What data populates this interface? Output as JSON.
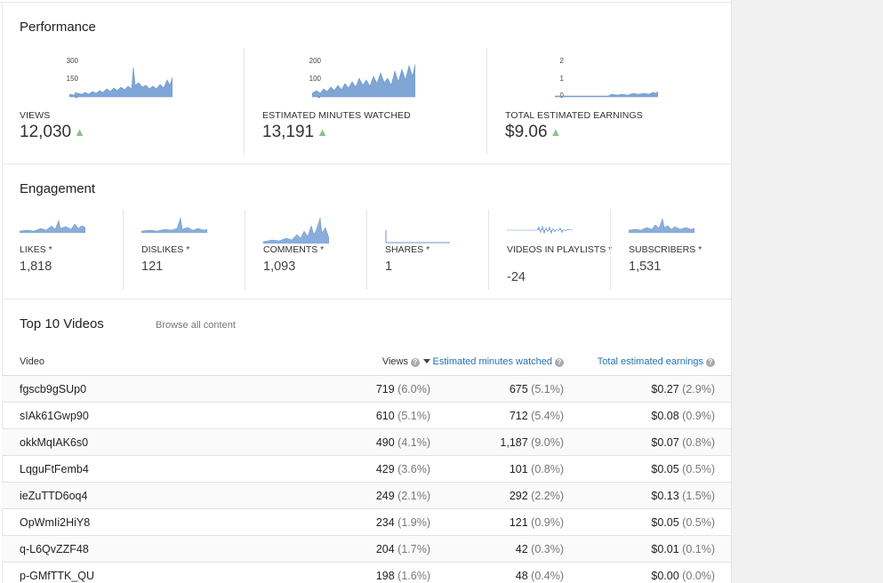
{
  "performance": {
    "title": "Performance",
    "views": {
      "label": "VIEWS",
      "value": "12,030",
      "ticks": [
        "300",
        "150",
        "0"
      ],
      "color": "#7fa6d5"
    },
    "minutes": {
      "label": "ESTIMATED MINUTES WATCHED",
      "value": "13,191",
      "ticks": [
        "200",
        "100",
        "0"
      ],
      "color": "#7fa6d5"
    },
    "earnings": {
      "label": "TOTAL ESTIMATED EARNINGS",
      "value": "$9.06",
      "ticks": [
        "2",
        "1",
        "0"
      ],
      "color": "#7fa6d5"
    },
    "trend_symbol": "▲",
    "trend_color": "#8fc08a"
  },
  "engagement": {
    "title": "Engagement",
    "items": [
      {
        "label": "LIKES *",
        "value": "1,818"
      },
      {
        "label": "DISLIKES *",
        "value": "121"
      },
      {
        "label": "COMMENTS *",
        "value": "1,093"
      },
      {
        "label": "SHARES *",
        "value": "1"
      },
      {
        "label": "VIDEOS IN PLAYLISTS *",
        "value": "-24"
      },
      {
        "label": "SUBSCRIBERS *",
        "value": "1,531"
      }
    ]
  },
  "top_videos": {
    "title": "Top 10 Videos",
    "browse_link": "Browse all content",
    "columns": {
      "video": "Video",
      "views": "Views",
      "minutes": "Estimated minutes watched",
      "earnings": "Total estimated earnings",
      "help_symbol": "?"
    },
    "rows": [
      {
        "video": "fgscb9gSUp0",
        "views": "719",
        "views_pct": "(6.0%)",
        "minutes": "675",
        "minutes_pct": "(5.1%)",
        "earnings": "$0.27",
        "earnings_pct": "(2.9%)"
      },
      {
        "video": "sIAk61Gwp90",
        "views": "610",
        "views_pct": "(5.1%)",
        "minutes": "712",
        "minutes_pct": "(5.4%)",
        "earnings": "$0.08",
        "earnings_pct": "(0.9%)"
      },
      {
        "video": "okkMqIAK6s0",
        "views": "490",
        "views_pct": "(4.1%)",
        "minutes": "1,187",
        "minutes_pct": "(9.0%)",
        "earnings": "$0.07",
        "earnings_pct": "(0.8%)"
      },
      {
        "video": "LqguFtFemb4",
        "views": "429",
        "views_pct": "(3.6%)",
        "minutes": "101",
        "minutes_pct": "(0.8%)",
        "earnings": "$0.05",
        "earnings_pct": "(0.5%)"
      },
      {
        "video": "ieZuTTD6oq4",
        "views": "249",
        "views_pct": "(2.1%)",
        "minutes": "292",
        "minutes_pct": "(2.2%)",
        "earnings": "$0.13",
        "earnings_pct": "(1.5%)"
      },
      {
        "video": "OpWmIi2HiY8",
        "views": "234",
        "views_pct": "(1.9%)",
        "minutes": "121",
        "minutes_pct": "(0.9%)",
        "earnings": "$0.05",
        "earnings_pct": "(0.5%)"
      },
      {
        "video": "q-L6QvZZF48",
        "views": "204",
        "views_pct": "(1.7%)",
        "minutes": "42",
        "minutes_pct": "(0.3%)",
        "earnings": "$0.01",
        "earnings_pct": "(0.1%)"
      },
      {
        "video": "p-GMfTTK_QU",
        "views": "198",
        "views_pct": "(1.6%)",
        "minutes": "48",
        "minutes_pct": "(0.4%)",
        "earnings": "$0.00",
        "earnings_pct": "(0.0%)"
      }
    ]
  }
}
